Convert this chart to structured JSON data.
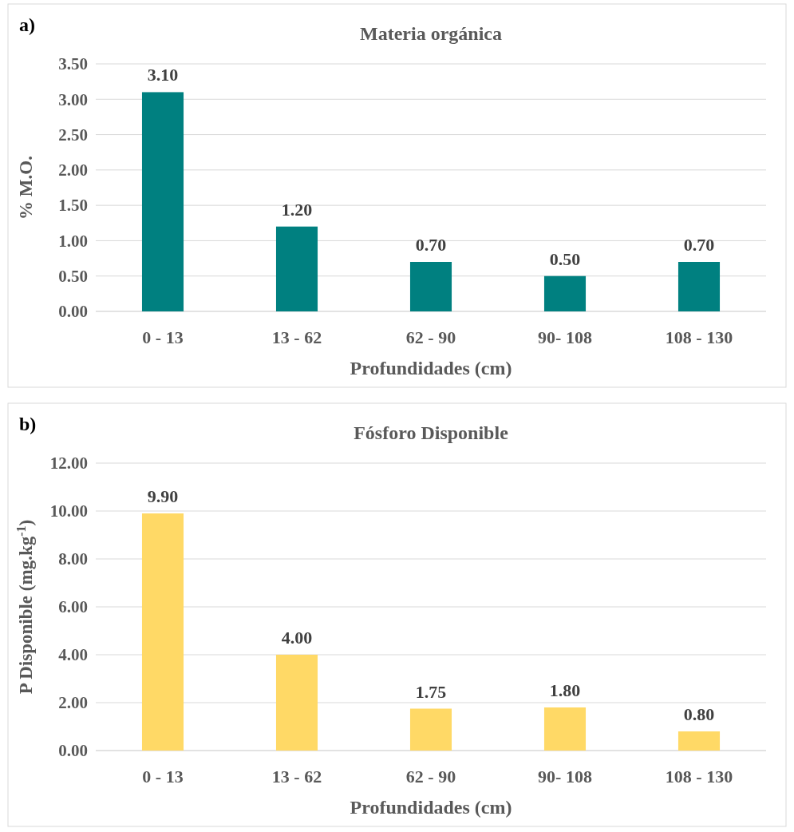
{
  "chart_data": [
    {
      "type": "bar",
      "title": "Materia orgánica",
      "xlabel": "Profundidades (cm)",
      "ylabel": "% M.O.",
      "annotations": [
        "a)"
      ],
      "categories": [
        "0 - 13",
        "13 - 62",
        "62 - 90",
        "90- 108",
        "108 - 130"
      ],
      "values": [
        3.1,
        1.2,
        0.7,
        0.5,
        0.7
      ],
      "value_labels": [
        "3.10",
        "1.20",
        "0.70",
        "0.50",
        "0.70"
      ],
      "color": "#008080",
      "ylim": [
        0,
        3.5
      ],
      "yticks": [
        {
          "value": 0,
          "label": "0.00"
        },
        {
          "value": 0.5,
          "label": "0.50"
        },
        {
          "value": 1,
          "label": "1.00"
        },
        {
          "value": 1.5,
          "label": "1.50"
        },
        {
          "value": 2,
          "label": "2.00"
        },
        {
          "value": 2.5,
          "label": "2.50"
        },
        {
          "value": 3,
          "label": "3.00"
        },
        {
          "value": 3.5,
          "label": "3.50"
        }
      ],
      "grid": "y"
    },
    {
      "type": "bar",
      "title": "Fósforo Disponible",
      "xlabel": "Profundidades (cm)",
      "ylabel": "P Disponible (mg.kg$^{-1}$)",
      "annotations": [
        "b)"
      ],
      "categories": [
        "0 - 13",
        "13 - 62",
        "62 - 90",
        "90- 108",
        "108 - 130"
      ],
      "values": [
        9.9,
        4.0,
        1.75,
        1.8,
        0.8
      ],
      "value_labels": [
        "9.90",
        "4.00",
        "1.75",
        "1.80",
        "0.80"
      ],
      "color": "#ffd966",
      "ylim": [
        0,
        12
      ],
      "yticks": [
        {
          "value": 0,
          "label": "0.00"
        },
        {
          "value": 2,
          "label": "2.00"
        },
        {
          "value": 4,
          "label": "4.00"
        },
        {
          "value": 6,
          "label": "6.00"
        },
        {
          "value": 8,
          "label": "8.00"
        },
        {
          "value": 10,
          "label": "10.00"
        },
        {
          "value": 12,
          "label": "12.00"
        }
      ],
      "grid": "y"
    }
  ]
}
